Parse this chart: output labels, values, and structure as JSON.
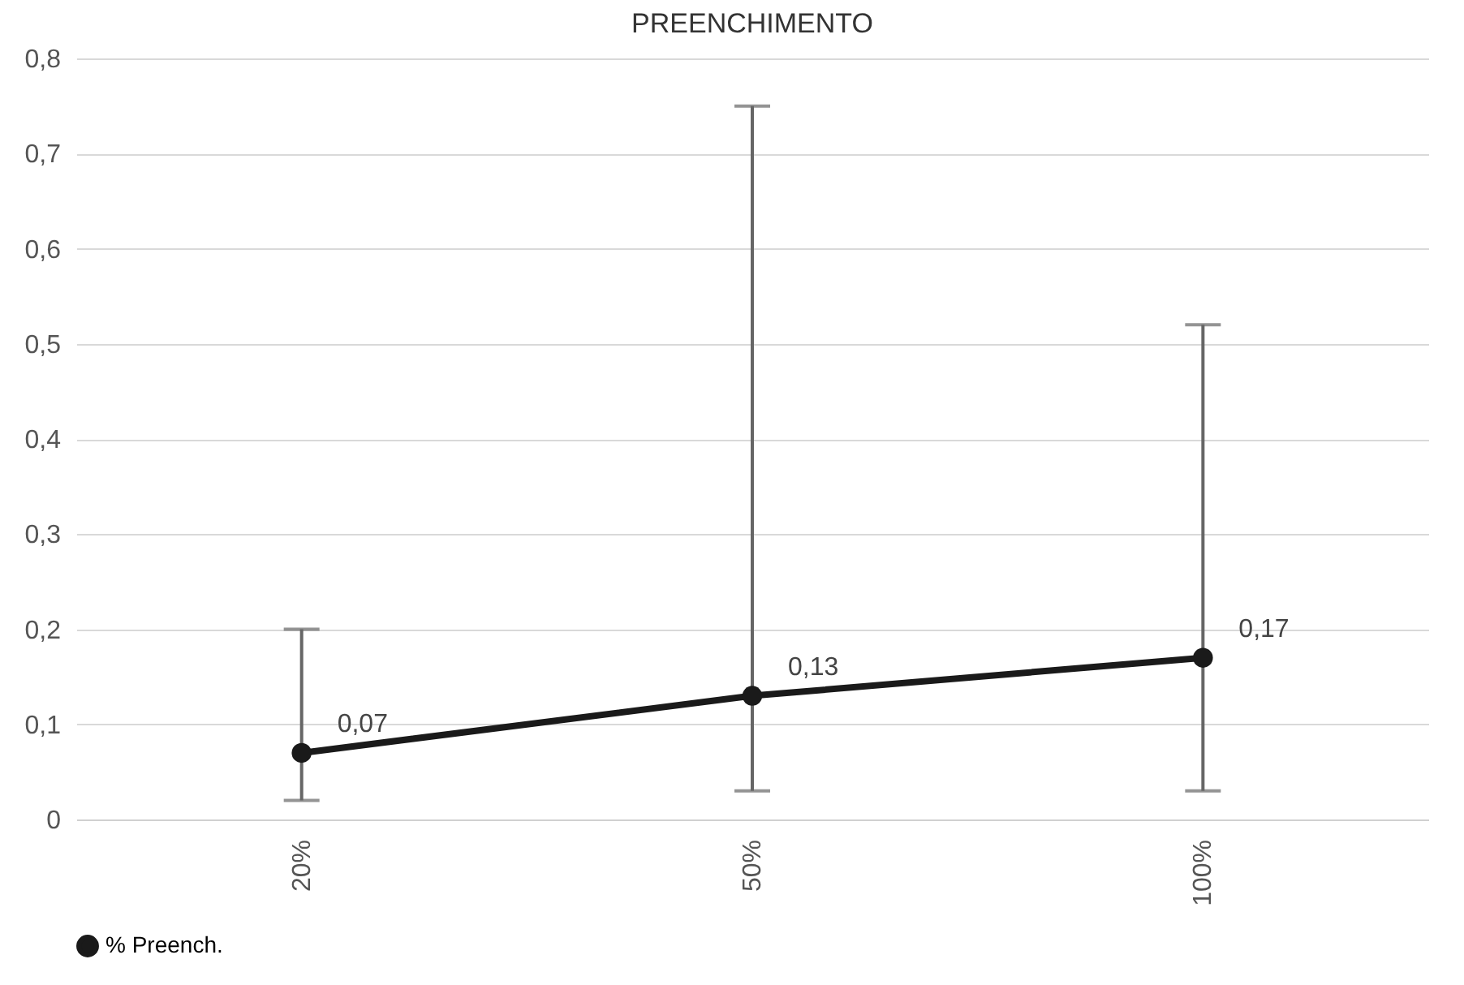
{
  "chart_data": {
    "type": "line",
    "title": "PREENCHIMENTO",
    "categories": [
      "20%",
      "50%",
      "100%"
    ],
    "series": [
      {
        "name": "% Preench.",
        "color": "#1a1a1a",
        "values": [
          0.07,
          0.13,
          0.17
        ],
        "errors": [
          [
            0.02,
            0.2
          ],
          [
            0.03,
            0.75
          ],
          [
            0.03,
            0.52
          ]
        ]
      }
    ],
    "ylim": [
      0,
      0.8
    ],
    "yticks": [
      {
        "value": 0,
        "label": "0"
      },
      {
        "value": 0.1,
        "label": "0,1"
      },
      {
        "value": 0.2,
        "label": "0,2"
      },
      {
        "value": 0.3,
        "label": "0,3"
      },
      {
        "value": 0.4,
        "label": "0,4"
      },
      {
        "value": 0.5,
        "label": "0,5"
      },
      {
        "value": 0.6,
        "label": "0,6"
      },
      {
        "value": 0.7,
        "label": "0,7"
      },
      {
        "value": 0.8,
        "label": "0,8"
      }
    ],
    "grid": "y",
    "legend": "bottom",
    "marker": "circle",
    "line_style": "solid",
    "value_labels": [
      "0,07",
      "0,13",
      "0,17"
    ]
  }
}
